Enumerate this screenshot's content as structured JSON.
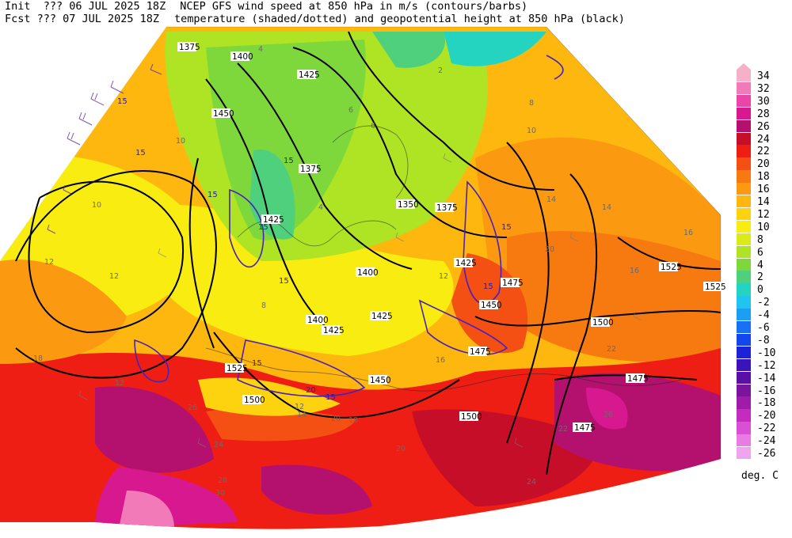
{
  "header": {
    "init_label": "Init  ??? 06 JUL 2025 18Z",
    "fcst_label": "Fcst ??? 07 JUL 2025 18Z",
    "title_line1": "NCEP GFS wind speed at 850 hPa in m/s (contours/barbs)",
    "title_line2": "temperature (shaded/dotted) and geopotential height at 850 hPa (black)"
  },
  "colorbar": {
    "units": "deg. C",
    "entries": [
      {
        "label": "34",
        "color": "#f6b0c8"
      },
      {
        "label": "32",
        "color": "#f27ab8"
      },
      {
        "label": "30",
        "color": "#ec45a8"
      },
      {
        "label": "28",
        "color": "#d8188e"
      },
      {
        "label": "26",
        "color": "#b4106e"
      },
      {
        "label": "24",
        "color": "#c60e28"
      },
      {
        "label": "22",
        "color": "#ee1e14"
      },
      {
        "label": "20",
        "color": "#f45014"
      },
      {
        "label": "18",
        "color": "#f77a10"
      },
      {
        "label": "16",
        "color": "#fb9a10"
      },
      {
        "label": "14",
        "color": "#fdb70e"
      },
      {
        "label": "12",
        "color": "#fdd20e"
      },
      {
        "label": "10",
        "color": "#f8ec10"
      },
      {
        "label": "8",
        "color": "#dbeb19"
      },
      {
        "label": "6",
        "color": "#aee424"
      },
      {
        "label": "4",
        "color": "#7ed83c"
      },
      {
        "label": "2",
        "color": "#4fd07c"
      },
      {
        "label": "0",
        "color": "#24d4c0"
      },
      {
        "label": "-2",
        "color": "#20c4ec"
      },
      {
        "label": "-4",
        "color": "#1c9ef4"
      },
      {
        "label": "-6",
        "color": "#1870f4"
      },
      {
        "label": "-8",
        "color": "#1446f0"
      },
      {
        "label": "-10",
        "color": "#1c22d8"
      },
      {
        "label": "-12",
        "color": "#3a14b8"
      },
      {
        "label": "-14",
        "color": "#5a10a8"
      },
      {
        "label": "-16",
        "color": "#7a149c"
      },
      {
        "label": "-18",
        "color": "#a01ca8"
      },
      {
        "label": "-20",
        "color": "#c42cc0"
      },
      {
        "label": "-22",
        "color": "#da50d4"
      },
      {
        "label": "-24",
        "color": "#e87ce4"
      },
      {
        "label": "-26",
        "color": "#f0a4ee"
      }
    ]
  },
  "height_contour_labels": [
    "1375",
    "1400",
    "1425",
    "1450",
    "1400",
    "1425",
    "1375",
    "1350",
    "1375",
    "1425",
    "1475",
    "1400",
    "1450",
    "1425",
    "1425",
    "1500",
    "1525",
    "1450",
    "1475",
    "1525",
    "1500",
    "1475",
    "1500",
    "1475",
    "1525"
  ],
  "wind_speed_labels": [
    "15",
    "15",
    "15",
    "15",
    "15",
    "15",
    "15",
    "15",
    "20",
    "15",
    "15"
  ],
  "temperature_labels": [
    "4",
    "10",
    "12",
    "12",
    "10",
    "8",
    "6",
    "2",
    "4",
    "6",
    "8",
    "10",
    "12",
    "14",
    "16",
    "18",
    "20",
    "22",
    "24",
    "26",
    "28",
    "30",
    "12",
    "14",
    "16",
    "18",
    "20",
    "22",
    "24",
    "26",
    "12",
    "16",
    "14",
    "20"
  ]
}
